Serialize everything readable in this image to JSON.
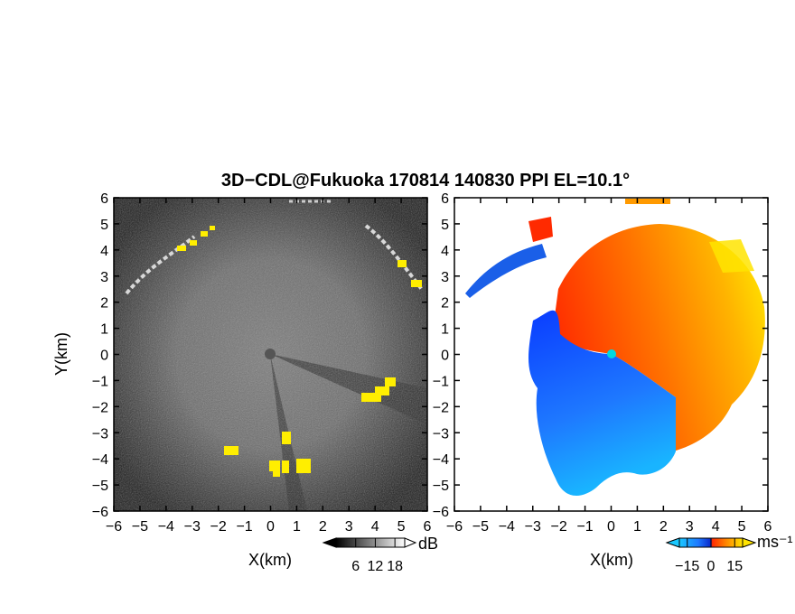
{
  "figure": {
    "title": "3D−CDL@Fukuoka 170814 140830 PPI EL=10.1°"
  },
  "left_panel": {
    "xlabel": "X(km)",
    "ylabel": "Y(km)",
    "x_ticks": [
      "−6",
      "−5",
      "−4",
      "−3",
      "−2",
      "−1",
      "0",
      "1",
      "2",
      "3",
      "4",
      "5",
      "6"
    ],
    "y_ticks": [
      "6",
      "5",
      "4",
      "3",
      "2",
      "1",
      "0",
      "−1",
      "−2",
      "−3",
      "−4",
      "−5",
      "−6"
    ],
    "xlim": [
      -6,
      6
    ],
    "ylim": [
      -6,
      6
    ],
    "colormap": "grayscale with yellow highlights",
    "colorbar": {
      "unit": "dB",
      "tick_labels": [
        "6",
        "12",
        "18"
      ],
      "ticks": [
        6,
        12,
        18
      ],
      "range": [
        0,
        21
      ]
    }
  },
  "right_panel": {
    "xlabel": "X(km)",
    "x_ticks": [
      "−6",
      "−5",
      "−4",
      "−3",
      "−2",
      "−1",
      "0",
      "1",
      "2",
      "3",
      "4",
      "5",
      "6"
    ],
    "y_ticks": [
      "6",
      "5",
      "4",
      "3",
      "2",
      "1",
      "0",
      "−1",
      "−2",
      "−3",
      "−4",
      "−5",
      "−6"
    ],
    "xlim": [
      -6,
      6
    ],
    "ylim": [
      -6,
      6
    ],
    "colormap": "blue-cyan to red-orange-yellow",
    "colorbar": {
      "unit": "ms⁻¹",
      "tick_labels": [
        "−15",
        "0",
        "15"
      ],
      "ticks": [
        -15,
        0,
        15
      ],
      "range": [
        -20,
        20
      ]
    }
  },
  "colors": {
    "background": "#ffffff",
    "highlight_yellow": "#ffee00",
    "neg_blue": "#0a3cff",
    "light_blue": "#19b4ff",
    "pos_red": "#ff2a00",
    "pos_orange": "#ff8a00",
    "pos_yellow": "#ffe400",
    "center_marker": "#00d8e0"
  }
}
